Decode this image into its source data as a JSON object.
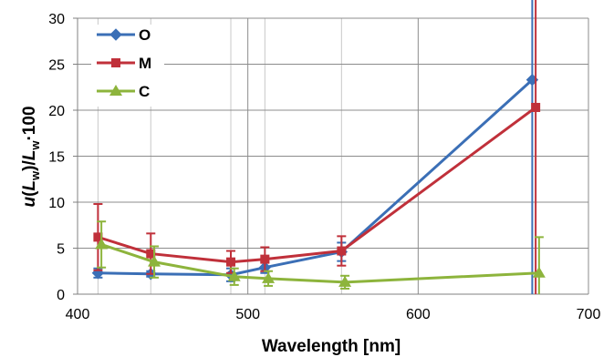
{
  "chart_data": {
    "type": "line",
    "xlabel": "Wavelength [nm]",
    "ylabel_parts": [
      "u(L",
      "w",
      ")/L",
      "w",
      "·100"
    ],
    "xlim": [
      400,
      700
    ],
    "ylim": [
      0,
      30
    ],
    "x_ticks": [
      "400",
      "500",
      "600",
      "700"
    ],
    "y_ticks": [
      "0",
      "5",
      "10",
      "15",
      "20",
      "25",
      "30"
    ],
    "x_tick_values": [
      400,
      500,
      600,
      700
    ],
    "y_tick_values": [
      0,
      5,
      10,
      15,
      20,
      25,
      30
    ],
    "grid_major_x": [
      400,
      500,
      600,
      700
    ],
    "grid_minor_x": [
      412,
      443,
      490,
      510,
      555,
      667
    ],
    "grid_y": [
      0,
      5,
      10,
      15,
      20,
      25,
      30
    ],
    "grid": true,
    "legend": "top-left",
    "series": [
      {
        "name": "O",
        "color": "#3b6fb6",
        "marker": "diamond",
        "points": [
          {
            "x": 412,
            "y": 2.3,
            "err": 0.5
          },
          {
            "x": 443,
            "y": 2.2,
            "err": 0.3
          },
          {
            "x": 490,
            "y": 2.1,
            "err": 0.7
          },
          {
            "x": 510,
            "y": 2.9,
            "err": 0.6
          },
          {
            "x": 555,
            "y": 4.6,
            "err": 1.0
          },
          {
            "x": 667,
            "y": 23.3,
            "err": 30
          }
        ]
      },
      {
        "name": "M",
        "color": "#c0303a",
        "marker": "square",
        "points": [
          {
            "x": 412,
            "y": 6.2,
            "err": 3.6
          },
          {
            "x": 443,
            "y": 4.4,
            "err": 2.2
          },
          {
            "x": 490,
            "y": 3.5,
            "err": 1.2
          },
          {
            "x": 510,
            "y": 3.8,
            "err": 1.3
          },
          {
            "x": 555,
            "y": 4.7,
            "err": 1.6
          },
          {
            "x": 669,
            "y": 20.3,
            "err": 30
          }
        ]
      },
      {
        "name": "C",
        "color": "#8db43c",
        "marker": "triangle",
        "points": [
          {
            "x": 414,
            "y": 5.4,
            "err": 2.5
          },
          {
            "x": 445,
            "y": 3.5,
            "err": 1.7
          },
          {
            "x": 492,
            "y": 1.9,
            "err": 0.9
          },
          {
            "x": 512,
            "y": 1.7,
            "err": 0.8
          },
          {
            "x": 557,
            "y": 1.3,
            "err": 0.7
          },
          {
            "x": 671,
            "y": 2.3,
            "err": 3.9
          }
        ]
      }
    ]
  }
}
